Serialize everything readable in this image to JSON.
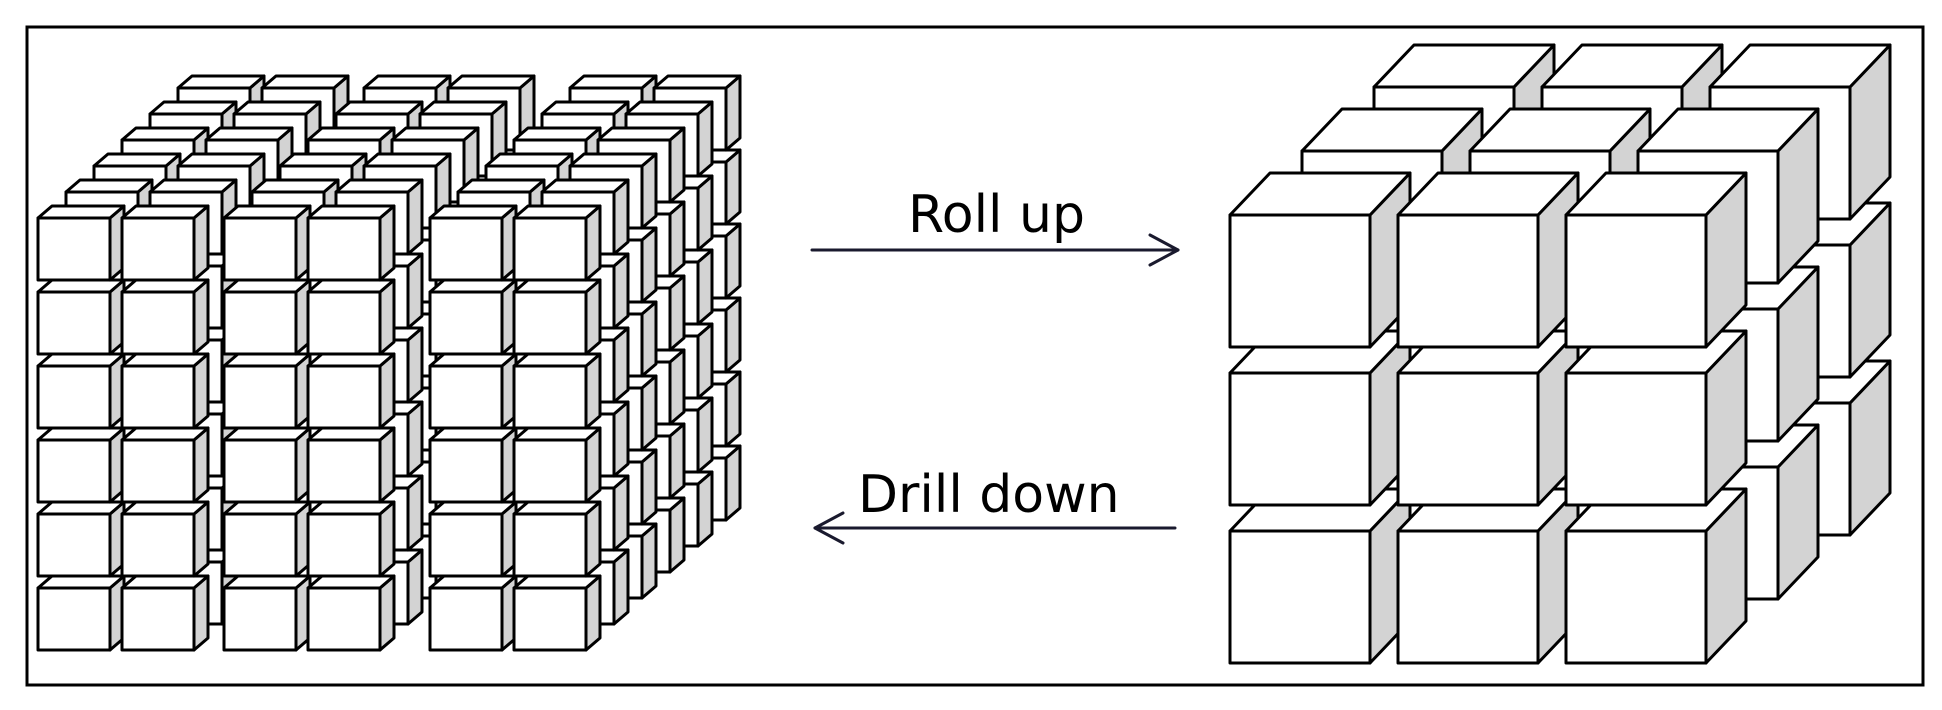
{
  "diagram": {
    "roll_up_label": "Roll up",
    "drill_down_label": "Drill down",
    "colors": {
      "face": "#ffffff",
      "side": "#d3d3d3",
      "stroke": "#000000",
      "arrow": "#1a1a2e"
    },
    "fine_cube_grid": {
      "columns": 6,
      "rows": 6,
      "depth": 6
    },
    "coarse_cube_grid": {
      "columns": 3,
      "rows": 3,
      "depth": 3
    }
  }
}
